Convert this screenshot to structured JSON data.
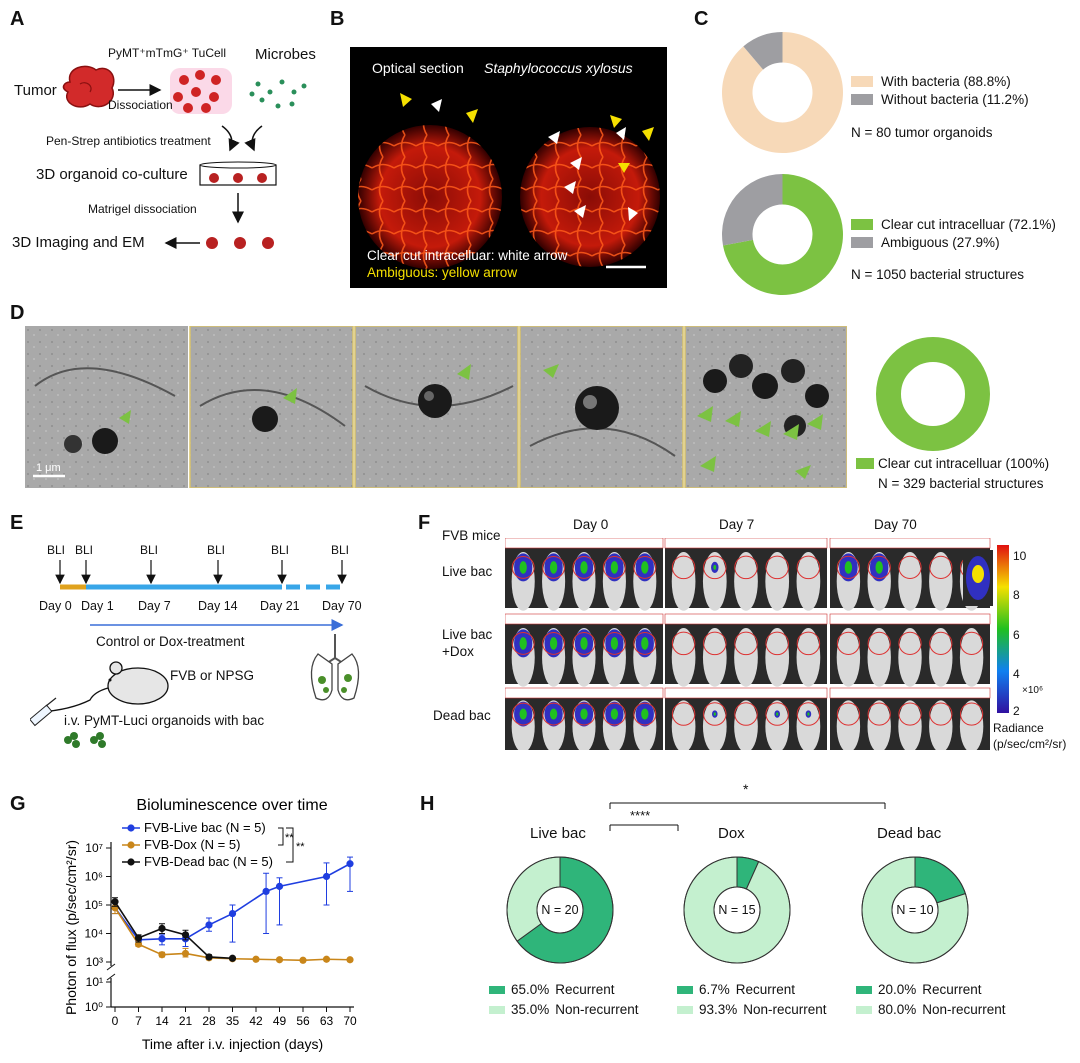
{
  "panels": {
    "a": {
      "letter": "A",
      "tumor": "Tumor",
      "cells_label": "PyMT⁺mTmG⁺ TuCell",
      "microbes": "Microbes",
      "dissociation": "Dissociation",
      "antibiotics": "Pen-Strep antibiotics treatment",
      "coculture": "3D organoid co-culture",
      "matrigel": "Matrigel dissociation",
      "imaging": "3D Imaging and EM"
    },
    "b": {
      "letter": "B",
      "optical": "Optical section",
      "species": "Staphylococcus xylosus",
      "white_note": "Clear cut intracelluar: white arrow",
      "yellow_note": "Ambiguous: yellow arrow"
    },
    "c": {
      "letter": "C",
      "donut1": {
        "slices": [
          {
            "label": "With bacteria (88.8%)",
            "value": 88.8,
            "color": "#f7d9b8"
          },
          {
            "label": "Without bacteria (11.2%)",
            "value": 11.2,
            "color": "#9e9ea2"
          }
        ],
        "n_label": "N = 80 tumor organoids"
      },
      "donut2": {
        "slices": [
          {
            "label": "Clear cut intracelluar (72.1%)",
            "value": 72.1,
            "color": "#7cc242"
          },
          {
            "label": "Ambiguous (27.9%)",
            "value": 27.9,
            "color": "#9e9ea2"
          }
        ],
        "n_label": "N = 1050 bacterial structures"
      }
    },
    "d": {
      "letter": "D",
      "scale_label": "1 μm",
      "legend": "Clear cut intracelluar (100%)",
      "value": 100,
      "color": "#7cc242",
      "n_label": "N = 329 bacterial structures"
    },
    "e": {
      "letter": "E",
      "bli_markers": [
        "BLI",
        "BLI",
        "BLI",
        "BLI",
        "BLI",
        "BLI"
      ],
      "days": [
        "Day 0",
        "Day 1",
        "Day 7",
        "Day 14",
        "Day 21",
        "Day 70"
      ],
      "treatment": "Control or Dox-treatment",
      "mouse_strain": "FVB or NPSG",
      "injection": "i.v. PyMT-Luci organoids with bac"
    },
    "f": {
      "letter": "F",
      "corner_label": "FVB mice",
      "columns": [
        "Day 0",
        "Day 7",
        "Day 70"
      ],
      "rows": [
        "Live bac",
        "Live bac\n+Dox",
        "Dead bac"
      ],
      "colorbar_ticks": [
        "10",
        "8",
        "6",
        "4",
        "2"
      ],
      "colorbar_unit": "×10⁶",
      "colorbar_title_1": "Radiance",
      "colorbar_title_2": "(p/sec/cm²/sr)"
    },
    "g": {
      "letter": "G",
      "significance": [
        "**",
        "**"
      ]
    },
    "h": {
      "letter": "H",
      "stars_top": "*",
      "stars_bottom": "****",
      "donuts": [
        {
          "title": "Live bac",
          "n_label": "N = 20",
          "slices": [
            {
              "label": "Recurrent",
              "pct": "65.0%",
              "value": 65.0,
              "color": "#2fb57a"
            },
            {
              "label": "Non-recurrent",
              "pct": "35.0%",
              "value": 35.0,
              "color": "#c4f0cf"
            }
          ]
        },
        {
          "title": "Dox",
          "n_label": "N = 15",
          "slices": [
            {
              "label": "Recurrent",
              "pct": "6.7%",
              "value": 6.7,
              "color": "#2fb57a"
            },
            {
              "label": "Non-recurrent",
              "pct": "93.3%",
              "value": 93.3,
              "color": "#c4f0cf"
            }
          ]
        },
        {
          "title": "Dead bac",
          "n_label": "N = 10",
          "slices": [
            {
              "label": "Recurrent",
              "pct": "20.0%",
              "value": 20.0,
              "color": "#2fb57a"
            },
            {
              "label": "Non-recurrent",
              "pct": "80.0%",
              "value": 80.0,
              "color": "#c4f0cf"
            }
          ]
        }
      ]
    }
  },
  "chart_data": {
    "type": "line",
    "title": "Bioluminescence over time",
    "xlabel": "Time after i.v. injection (days)",
    "ylabel": "Photon of flux (p/sec/cm²/sr)",
    "x_ticks": [
      0,
      7,
      14,
      21,
      28,
      35,
      42,
      49,
      56,
      63,
      70
    ],
    "y_ticks": [
      "10⁰",
      "10¹",
      "10³",
      "10⁴",
      "10⁵",
      "10⁶",
      "10⁷"
    ],
    "y_scale": "log (broken between 10¹ and 10³)",
    "series": [
      {
        "name": "FVB-Live bac (N = 5)",
        "color": "#1f3ee0",
        "x": [
          0,
          7,
          14,
          21,
          28,
          35,
          45,
          49,
          63,
          70
        ],
        "y": [
          80000,
          6000,
          6500,
          6500,
          20000,
          50000,
          300000,
          450000,
          1000000,
          2800000
        ],
        "err_low": [
          50000,
          4000,
          4000,
          3500,
          12000,
          5000,
          10000,
          20000,
          100000,
          300000
        ],
        "err_high": [
          120000,
          8000,
          9000,
          10000,
          35000,
          100000,
          1300000,
          900000,
          3000000,
          4800000
        ]
      },
      {
        "name": "FVB-Dox (N = 5)",
        "color": "#c9861a",
        "x": [
          0,
          7,
          14,
          21,
          28,
          35,
          42,
          49,
          56,
          63,
          70
        ],
        "y": [
          80000,
          4200,
          1800,
          2000,
          1400,
          1300,
          1250,
          1200,
          1150,
          1250,
          1200
        ],
        "err_low": [
          50000,
          3500,
          1500,
          1500,
          1200,
          1150,
          1100,
          1050,
          1000,
          1100,
          1050
        ],
        "err_high": [
          120000,
          5000,
          2200,
          3000,
          1700,
          1500,
          1400,
          1350,
          1300,
          1400,
          1350
        ]
      },
      {
        "name": "FVB-Dead bac (N = 5)",
        "color": "#111111",
        "x": [
          0,
          7,
          14,
          21,
          28,
          35
        ],
        "y": [
          130000,
          7000,
          15000,
          9000,
          1500,
          1350
        ],
        "err_low": [
          90000,
          5000,
          10000,
          6000,
          1300,
          1200
        ],
        "err_high": [
          180000,
          9000,
          22000,
          13000,
          1800,
          1500
        ]
      }
    ]
  }
}
